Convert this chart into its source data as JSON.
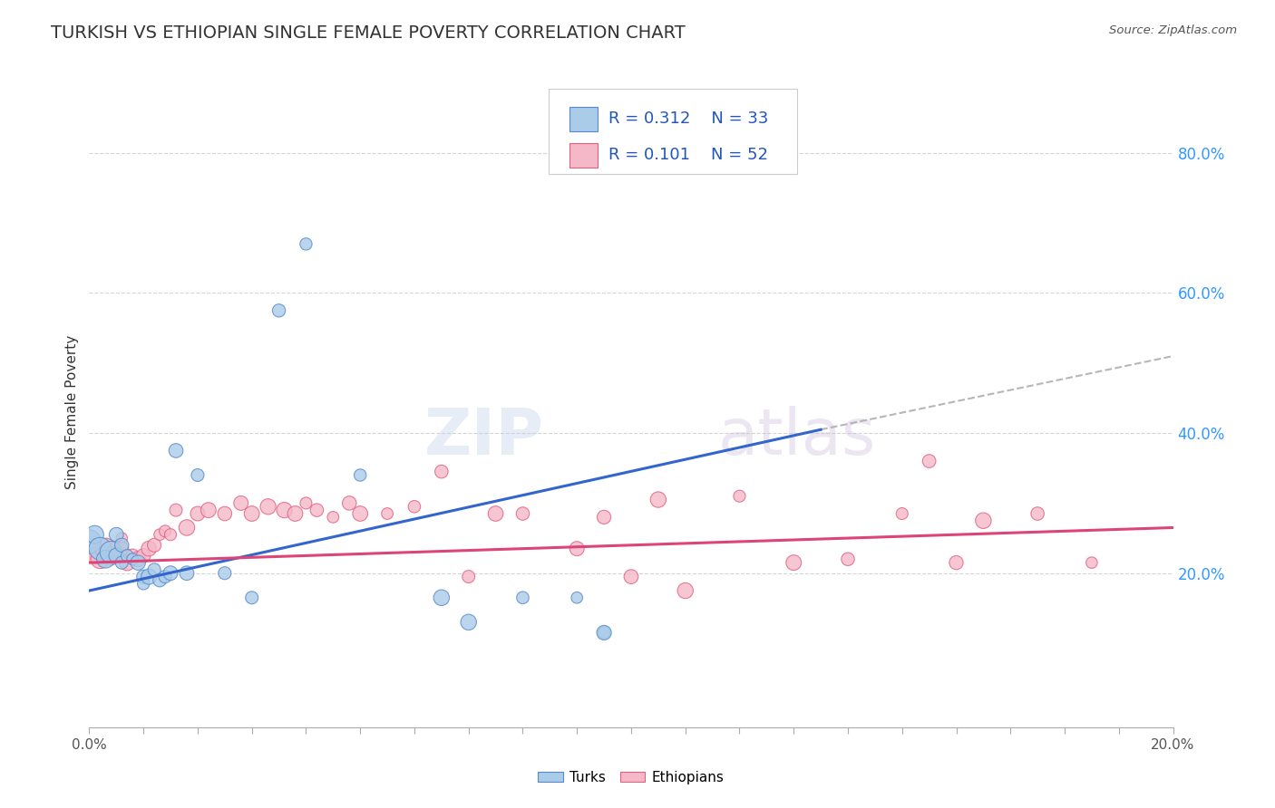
{
  "title": "TURKISH VS ETHIOPIAN SINGLE FEMALE POVERTY CORRELATION CHART",
  "source_text": "Source: ZipAtlas.com",
  "ylabel": "Single Female Poverty",
  "xlim": [
    0.0,
    0.2
  ],
  "ylim": [
    -0.02,
    0.88
  ],
  "yticks_right": [
    0.2,
    0.4,
    0.6,
    0.8
  ],
  "ytick_right_labels": [
    "20.0%",
    "40.0%",
    "60.0%",
    "80.0%"
  ],
  "turk_color": "#aacce8",
  "turk_color_edge": "#5588cc",
  "ethiopian_color": "#f5b8c8",
  "ethiopian_color_edge": "#e06080",
  "turk_line_color": "#3366cc",
  "ethiopian_line_color": "#dd4477",
  "turk_R": 0.312,
  "turk_N": 33,
  "ethiopian_R": 0.101,
  "ethiopian_N": 52,
  "legend_R_color": "#2255bb",
  "turk_line_x0": 0.0,
  "turk_line_y0": 0.175,
  "turk_line_x1": 0.2,
  "turk_line_y1": 0.51,
  "turk_line_solid_x1": 0.135,
  "turk_line_solid_y1": 0.405,
  "eth_line_x0": 0.0,
  "eth_line_y0": 0.215,
  "eth_line_x1": 0.2,
  "eth_line_y1": 0.265,
  "turks_x": [
    0.0,
    0.001,
    0.002,
    0.003,
    0.004,
    0.005,
    0.005,
    0.006,
    0.006,
    0.007,
    0.008,
    0.009,
    0.01,
    0.01,
    0.011,
    0.012,
    0.013,
    0.014,
    0.015,
    0.016,
    0.018,
    0.02,
    0.025,
    0.03,
    0.035,
    0.04,
    0.05,
    0.065,
    0.07,
    0.08,
    0.09,
    0.095,
    0.095
  ],
  "turks_y": [
    0.245,
    0.255,
    0.235,
    0.22,
    0.23,
    0.255,
    0.225,
    0.24,
    0.215,
    0.225,
    0.22,
    0.215,
    0.195,
    0.185,
    0.195,
    0.205,
    0.19,
    0.195,
    0.2,
    0.375,
    0.2,
    0.34,
    0.2,
    0.165,
    0.575,
    0.67,
    0.34,
    0.165,
    0.13,
    0.165,
    0.165,
    0.115,
    0.115
  ],
  "ethiopians_x": [
    0.0,
    0.001,
    0.002,
    0.003,
    0.004,
    0.005,
    0.006,
    0.006,
    0.007,
    0.008,
    0.009,
    0.01,
    0.011,
    0.012,
    0.013,
    0.014,
    0.015,
    0.016,
    0.018,
    0.02,
    0.022,
    0.025,
    0.028,
    0.03,
    0.033,
    0.036,
    0.038,
    0.04,
    0.042,
    0.045,
    0.048,
    0.05,
    0.055,
    0.06,
    0.065,
    0.07,
    0.075,
    0.08,
    0.09,
    0.095,
    0.1,
    0.105,
    0.11,
    0.12,
    0.13,
    0.14,
    0.15,
    0.155,
    0.16,
    0.165,
    0.175,
    0.185
  ],
  "ethiopians_y": [
    0.235,
    0.225,
    0.22,
    0.235,
    0.225,
    0.235,
    0.25,
    0.235,
    0.215,
    0.225,
    0.22,
    0.225,
    0.235,
    0.24,
    0.255,
    0.26,
    0.255,
    0.29,
    0.265,
    0.285,
    0.29,
    0.285,
    0.3,
    0.285,
    0.295,
    0.29,
    0.285,
    0.3,
    0.29,
    0.28,
    0.3,
    0.285,
    0.285,
    0.295,
    0.345,
    0.195,
    0.285,
    0.285,
    0.235,
    0.28,
    0.195,
    0.305,
    0.175,
    0.31,
    0.215,
    0.22,
    0.285,
    0.36,
    0.215,
    0.275,
    0.285,
    0.215
  ],
  "background_color": "#ffffff",
  "grid_color": "#cccccc",
  "title_color": "#333333",
  "title_fontsize": 14,
  "axis_label_fontsize": 11,
  "tick_fontsize": 11,
  "point_size": 120
}
